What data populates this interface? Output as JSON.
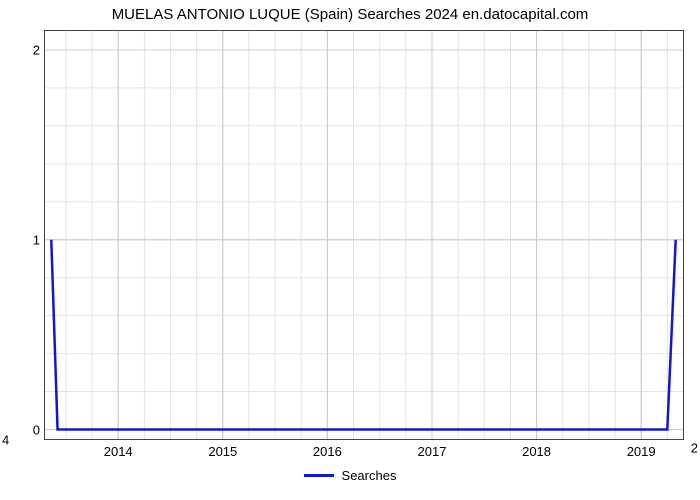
{
  "chart": {
    "type": "line",
    "title": "MUELAS ANTONIO LUQUE (Spain) Searches 2024 en.datocapital.com",
    "title_fontsize": 15,
    "background_color": "#ffffff",
    "border_color": "#444444",
    "grid_color": "#cccccc",
    "grid_minor_color": "#e2e2e2",
    "x_axis": {
      "min": 2013.3,
      "max": 2019.4,
      "tick_labels": [
        "2014",
        "2015",
        "2016",
        "2017",
        "2018",
        "2019"
      ],
      "tick_values": [
        2014,
        2015,
        2016,
        2017,
        2018,
        2019
      ],
      "minor_step": 0.25,
      "label_fontsize": 13
    },
    "y_axis": {
      "min": -0.05,
      "max": 2.1,
      "tick_labels": [
        "0",
        "1",
        "2"
      ],
      "tick_values": [
        0,
        1,
        2
      ],
      "minor_step": 0.2,
      "label_fontsize": 13
    },
    "series": {
      "name": "Searches",
      "color": "#1018c8",
      "line_width": 2.5,
      "points": [
        {
          "x": 2013.36,
          "y": 1.0
        },
        {
          "x": 2013.42,
          "y": 0.0
        },
        {
          "x": 2019.25,
          "y": 0.0
        },
        {
          "x": 2019.33,
          "y": 1.0
        }
      ]
    },
    "legend": {
      "label": "Searches",
      "swatch_color": "#1018c8"
    },
    "outer_labels": {
      "left_top": "4",
      "right_bottom": "2"
    }
  }
}
